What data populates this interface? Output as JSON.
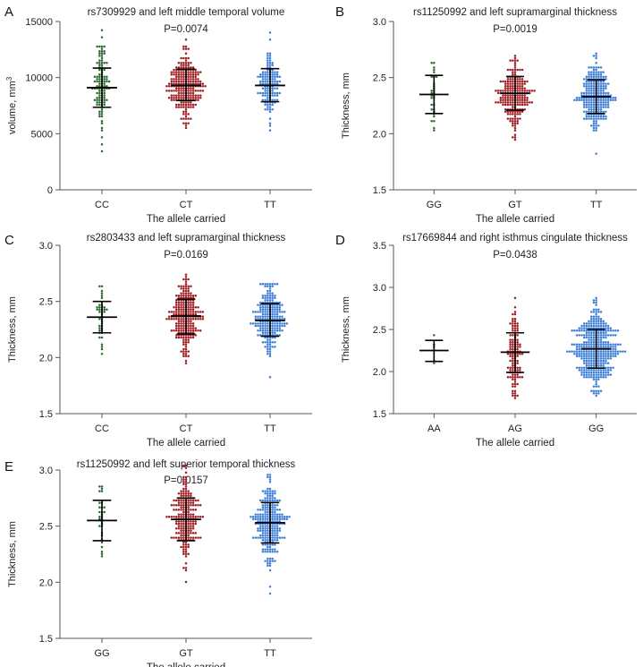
{
  "figure": {
    "colors": {
      "CC": "#2e6b34",
      "GG_green": "#2e6b34",
      "AA": "#2e6b34",
      "CT": "#a11f24",
      "GT": "#a11f24",
      "AG": "#a11f24",
      "TT": "#3f7fd6",
      "GG_blue": "#3f7fd6",
      "axis": "#555555",
      "errorbar": "#000000"
    }
  },
  "chart_data": [
    {
      "panel": "A",
      "type": "scatter",
      "subtype": "beeswarm-with-mean-sd",
      "title": "rs7309929 and left middle temporal volume",
      "pvalue": "P=0.0074",
      "xlabel": "The allele carried",
      "ylabel": "volume, mm",
      "ylabel_superscript": "3",
      "ylim": [
        0,
        15000
      ],
      "yticks": [
        0,
        5000,
        10000,
        15000
      ],
      "ytick_labels": [
        "0",
        "5000",
        "10000",
        "15000"
      ],
      "categories": [
        "CC",
        "CT",
        "TT"
      ],
      "color_keys": [
        "CC",
        "CT",
        "TT"
      ],
      "mean": [
        9100,
        9300,
        9300
      ],
      "sd_low": [
        7350,
        7950,
        7850
      ],
      "sd_high": [
        10850,
        10750,
        10800
      ],
      "range_low": [
        3500,
        5500,
        5200
      ],
      "range_high": [
        14200,
        13300,
        14000
      ],
      "n": [
        110,
        240,
        130
      ]
    },
    {
      "panel": "B",
      "type": "scatter",
      "subtype": "beeswarm-with-mean-sd",
      "title": "rs11250992 and left supramarginal thickness",
      "pvalue": "P=0.0019",
      "xlabel": "The allele carried",
      "ylabel": "Thickness, mm",
      "ylim": [
        1.5,
        3.0
      ],
      "yticks": [
        1.5,
        2.0,
        2.5,
        3.0
      ],
      "ytick_labels": [
        "1.5",
        "2.0",
        "2.5",
        "3.0"
      ],
      "categories": [
        "GG",
        "GT",
        "TT"
      ],
      "color_keys": [
        "GG_green",
        "GT",
        "TT"
      ],
      "mean": [
        2.35,
        2.36,
        2.33
      ],
      "sd_low": [
        2.18,
        2.21,
        2.18
      ],
      "sd_high": [
        2.52,
        2.51,
        2.48
      ],
      "range_low": [
        2.02,
        1.95,
        1.82
      ],
      "range_high": [
        2.64,
        2.69,
        2.72
      ],
      "n": [
        30,
        210,
        240
      ]
    },
    {
      "panel": "C",
      "type": "scatter",
      "subtype": "beeswarm-with-mean-sd",
      "title": "rs2803433 and left supramarginal thickness",
      "pvalue": "P=0.0169",
      "xlabel": "The allele carried",
      "ylabel": "Thickness, mm",
      "ylim": [
        1.5,
        3.0
      ],
      "yticks": [
        1.5,
        2.0,
        2.5,
        3.0
      ],
      "ytick_labels": [
        "1.5",
        "2.0",
        "2.5",
        "3.0"
      ],
      "categories": [
        "CC",
        "CT",
        "TT"
      ],
      "color_keys": [
        "CC",
        "CT",
        "TT"
      ],
      "mean": [
        2.36,
        2.37,
        2.33
      ],
      "sd_low": [
        2.22,
        2.21,
        2.19
      ],
      "sd_high": [
        2.5,
        2.52,
        2.48
      ],
      "range_low": [
        2.04,
        1.95,
        1.83
      ],
      "range_high": [
        2.64,
        2.73,
        2.66
      ],
      "n": [
        40,
        230,
        220
      ]
    },
    {
      "panel": "D",
      "type": "scatter",
      "subtype": "beeswarm-with-mean-sd",
      "title": "rs17669844 and right isthmus cingulate thickness",
      "pvalue": "P=0.0438",
      "xlabel": "The allele carried",
      "ylabel": "Thickness, mm",
      "ylim": [
        1.5,
        3.5
      ],
      "yticks": [
        1.5,
        2.0,
        2.5,
        3.0,
        3.5
      ],
      "ytick_labels": [
        "1.5",
        "2.0",
        "2.5",
        "3.0",
        "3.5"
      ],
      "categories": [
        "AA",
        "AG",
        "GG"
      ],
      "color_keys": [
        "AA",
        "AG",
        "GG_blue"
      ],
      "mean": [
        2.25,
        2.23,
        2.27
      ],
      "sd_low": [
        2.12,
        1.99,
        2.04
      ],
      "sd_high": [
        2.37,
        2.46,
        2.5
      ],
      "range_low": [
        2.1,
        1.68,
        1.72
      ],
      "range_high": [
        2.43,
        2.88,
        2.88
      ],
      "n": [
        5,
        120,
        380
      ]
    },
    {
      "panel": "E",
      "type": "scatter",
      "subtype": "beeswarm-with-mean-sd",
      "title": "rs11250992 and left superior temporal thickness",
      "pvalue": "P=0.0157",
      "xlabel": "The allele carried",
      "ylabel": "Thickness, mm",
      "ylim": [
        1.5,
        3.0
      ],
      "yticks": [
        1.5,
        2.0,
        2.5,
        3.0
      ],
      "ytick_labels": [
        "1.5",
        "2.0",
        "2.5",
        "3.0"
      ],
      "categories": [
        "GG",
        "GT",
        "TT"
      ],
      "color_keys": [
        "GG_green",
        "GT",
        "TT"
      ],
      "mean": [
        2.55,
        2.56,
        2.53
      ],
      "sd_low": [
        2.37,
        2.37,
        2.35
      ],
      "sd_high": [
        2.73,
        2.75,
        2.71
      ],
      "range_low": [
        2.23,
        2.0,
        1.89
      ],
      "range_high": [
        2.86,
        3.05,
        3.06
      ],
      "n": [
        30,
        210,
        240
      ]
    }
  ]
}
